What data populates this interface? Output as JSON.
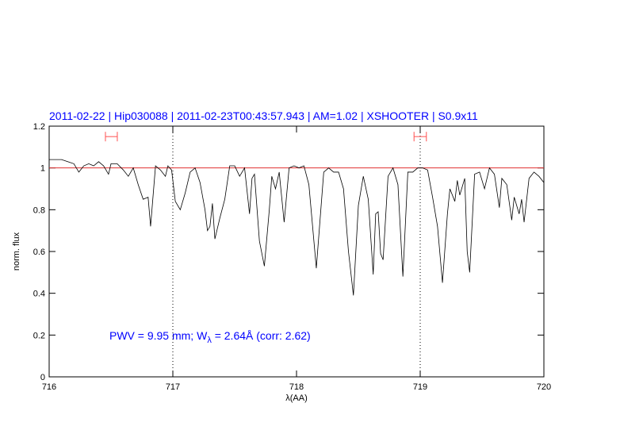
{
  "chart_data": {
    "type": "line",
    "title": "2011-02-22 | Hip030088 | 2011-02-23T00:43:57.943 | AM=1.02 | XSHOOTER | S0.9x11",
    "x_label": "λ(AA)",
    "y_label": "norm. flux",
    "annotation": [
      "PWV = 9.95 mm; W",
      "λ",
      " = 2.64Å (corr: 2.62)"
    ],
    "xlim": [
      716,
      720
    ],
    "ylim": [
      0,
      1.2
    ],
    "xticks": [
      716,
      717,
      718,
      719,
      720
    ],
    "yticks": [
      0,
      0.2,
      0.4,
      0.6,
      0.8,
      1,
      1.2
    ],
    "reference_line": 1,
    "reference_color": "#e03030",
    "vlines": [
      717,
      719
    ],
    "ranges": [
      [
        716.455,
        716.551
      ],
      [
        718.95,
        719.05
      ]
    ],
    "range_level": 1.15,
    "range_color": "#ff5050",
    "series": [
      {
        "color": "#000000",
        "x": [
          716.0,
          716.1,
          716.15,
          716.2,
          716.24,
          716.28,
          716.32,
          716.36,
          716.4,
          716.44,
          716.48,
          716.5,
          716.55,
          716.6,
          716.64,
          716.68,
          716.72,
          716.76,
          716.8,
          716.82,
          716.86,
          716.9,
          716.94,
          716.96,
          716.99,
          717.02,
          717.06,
          717.1,
          717.14,
          717.18,
          717.22,
          717.26,
          717.28,
          717.3,
          717.32,
          717.34,
          717.38,
          717.42,
          717.46,
          717.5,
          717.54,
          717.58,
          717.62,
          717.64,
          717.66,
          717.7,
          717.74,
          717.78,
          717.8,
          717.83,
          717.86,
          717.9,
          717.94,
          717.98,
          718.02,
          718.06,
          718.1,
          718.16,
          718.22,
          718.26,
          718.3,
          718.34,
          718.38,
          718.42,
          718.46,
          718.5,
          718.54,
          718.58,
          718.62,
          718.64,
          718.66,
          718.68,
          718.7,
          718.74,
          718.78,
          718.82,
          718.86,
          718.9,
          718.94,
          718.98,
          719.02,
          719.06,
          719.1,
          719.14,
          719.18,
          719.22,
          719.24,
          719.28,
          719.3,
          719.32,
          719.36,
          719.38,
          719.4,
          719.44,
          719.48,
          719.52,
          719.56,
          719.6,
          719.64,
          719.66,
          719.7,
          719.74,
          719.76,
          719.8,
          719.82,
          719.84,
          719.88,
          719.92,
          719.96,
          720.0
        ],
        "values": [
          1.04,
          1.04,
          1.03,
          1.02,
          0.98,
          1.01,
          1.02,
          1.01,
          1.03,
          1.01,
          0.97,
          1.02,
          1.02,
          0.99,
          0.96,
          1.0,
          0.92,
          0.85,
          0.86,
          0.72,
          1.01,
          0.99,
          0.96,
          1.01,
          0.99,
          0.84,
          0.8,
          0.88,
          0.98,
          1.0,
          0.93,
          0.8,
          0.7,
          0.72,
          0.83,
          0.66,
          0.76,
          0.85,
          1.01,
          1.01,
          0.96,
          1.0,
          0.78,
          0.95,
          0.97,
          0.65,
          0.53,
          0.8,
          0.96,
          0.9,
          0.98,
          0.74,
          1.0,
          1.01,
          1.0,
          1.01,
          0.92,
          0.52,
          0.98,
          1.0,
          0.98,
          0.98,
          0.9,
          0.6,
          0.39,
          0.82,
          0.96,
          0.85,
          0.49,
          0.78,
          0.79,
          0.59,
          0.56,
          0.96,
          1.0,
          0.92,
          0.48,
          0.98,
          0.98,
          1.0,
          1.0,
          0.99,
          0.86,
          0.72,
          0.45,
          0.78,
          0.9,
          0.84,
          0.94,
          0.87,
          0.95,
          0.6,
          0.5,
          0.97,
          0.98,
          0.9,
          1.0,
          0.97,
          0.81,
          0.95,
          0.92,
          0.75,
          0.86,
          0.78,
          0.85,
          0.74,
          0.95,
          0.98,
          0.96,
          0.93
        ]
      }
    ]
  }
}
